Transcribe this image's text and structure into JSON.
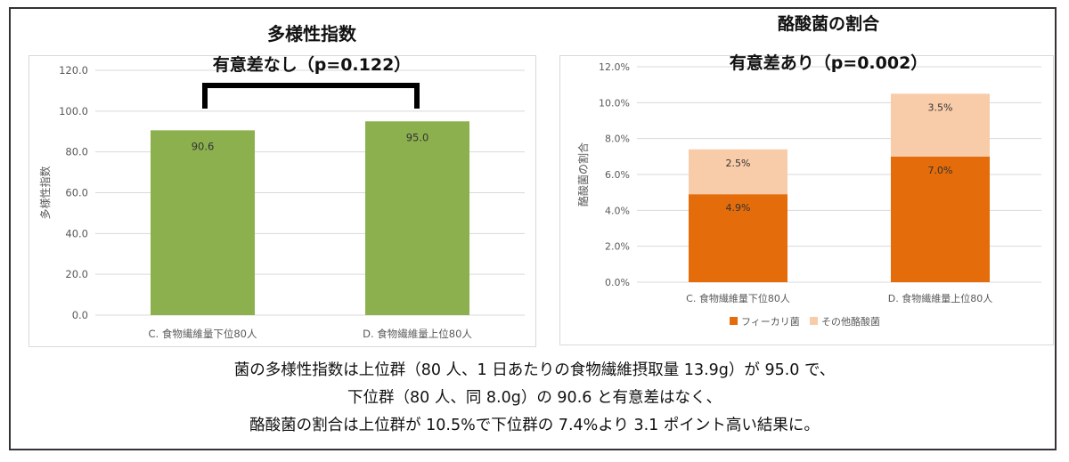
{
  "colors": {
    "green_bar": "#8db04f",
    "fecalibacterium": "#e46c0a",
    "other_butyrate": "#f9cca9",
    "grid": "#d9d9d9",
    "axis_text": "#595959"
  },
  "left_chart_header": {
    "title": "多様性指数",
    "significance": "有意差なし（p=0.122）"
  },
  "right_chart_header": {
    "title": "酪酸菌の割合",
    "significance": "有意差あり（p=0.002）"
  },
  "chart_data": [
    {
      "type": "bar",
      "title": "多様性指数",
      "ylabel": "多様性指数",
      "xlabel": "",
      "categories": [
        "C. 食物繊維量下位80人",
        "D. 食物繊維量上位80人"
      ],
      "values": [
        90.6,
        95.0
      ],
      "value_labels": [
        "90.6",
        "95.0"
      ],
      "ylim": [
        0,
        120
      ],
      "yticks": [
        0,
        20,
        40,
        60,
        80,
        100,
        120
      ],
      "ytick_labels": [
        "0.0",
        "20.0",
        "40.0",
        "60.0",
        "80.0",
        "100.0",
        "120.0"
      ],
      "grid": true,
      "legend": "none"
    },
    {
      "type": "bar",
      "stacked": true,
      "title": "酪酸菌の割合",
      "ylabel": "酪酸菌の割合",
      "xlabel": "",
      "categories": [
        "C. 食物繊維量下位80人",
        "D. 食物繊維量上位80人"
      ],
      "series": [
        {
          "name": "フィーカリ菌",
          "values": [
            4.9,
            7.0
          ],
          "value_labels": [
            "4.9%",
            "7.0%"
          ],
          "color": "#e46c0a"
        },
        {
          "name": "その他酪酸菌",
          "values": [
            2.5,
            3.5
          ],
          "value_labels": [
            "2.5%",
            "3.5%"
          ],
          "color": "#f9cca9"
        }
      ],
      "ylim": [
        0,
        12
      ],
      "yticks": [
        0,
        2,
        4,
        6,
        8,
        10,
        12
      ],
      "ytick_labels": [
        "0.0%",
        "2.0%",
        "4.0%",
        "6.0%",
        "8.0%",
        "10.0%",
        "12.0%"
      ],
      "grid": true,
      "legend": "bottom"
    }
  ],
  "caption": {
    "line1": "菌の多様性指数は上位群（80 人、1 日あたりの食物繊維摂取量 13.9g）が 95.0 で、",
    "line2": "下位群（80 人、同 8.0g）の 90.6 と有意差はなく、",
    "line3": "酪酸菌の割合は上位群が 10.5%で下位群の 7.4%より 3.1 ポイント高い結果に。"
  }
}
